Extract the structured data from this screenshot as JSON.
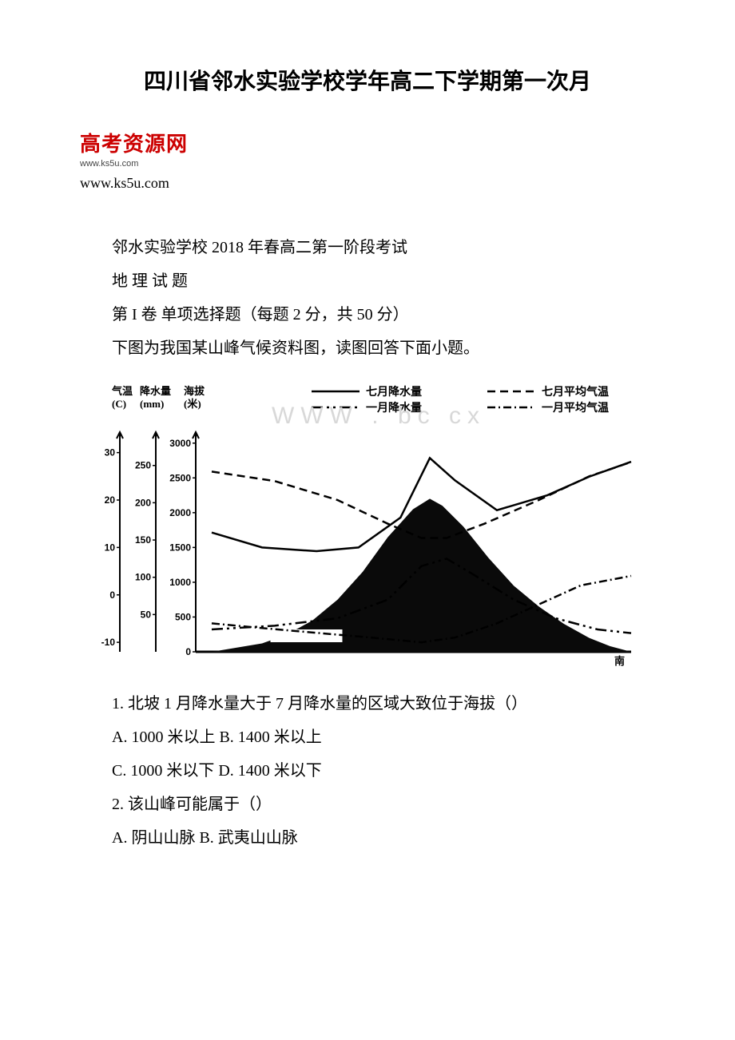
{
  "title": "四川省邻水实验学校学年高二下学期第一次月",
  "logo": {
    "brand": "高考资源网",
    "sub_url": "www.ks5u.com"
  },
  "main_url": "www.ks5u.com",
  "paragraphs": {
    "p1": "邻水实验学校 2018 年春高二第一阶段考试",
    "p2": "地 理 试 题",
    "p3": "第 I 卷 单项选择题（每题 2 分，共 50 分）",
    "p4": "下图为我国某山峰气候资料图，读图回答下面小题。"
  },
  "chart": {
    "type": "line-and-area",
    "background_color": "#ffffff",
    "axis_labels": {
      "temp": "气温",
      "temp_unit": "(C)",
      "precip": "降水量",
      "precip_unit": "(mm)",
      "elev": "海拔",
      "elev_unit": "(米)"
    },
    "legend": {
      "jul_precip": "七月降水量",
      "jan_precip": "一月降水量",
      "jul_temp": "七月平均气温",
      "jan_temp": "一月平均气温"
    },
    "temp_ticks": [
      -10,
      0,
      10,
      20,
      30
    ],
    "precip_ticks": [
      50,
      100,
      150,
      200,
      250
    ],
    "elev_ticks": [
      0,
      500,
      1000,
      1500,
      2000,
      2500,
      3000
    ],
    "mountain_profile": [
      [
        0,
        0
      ],
      [
        0.05,
        50
      ],
      [
        0.12,
        120
      ],
      [
        0.18,
        250
      ],
      [
        0.24,
        450
      ],
      [
        0.3,
        750
      ],
      [
        0.36,
        1150
      ],
      [
        0.42,
        1650
      ],
      [
        0.48,
        2050
      ],
      [
        0.52,
        2200
      ],
      [
        0.55,
        2100
      ],
      [
        0.6,
        1800
      ],
      [
        0.66,
        1350
      ],
      [
        0.72,
        950
      ],
      [
        0.78,
        650
      ],
      [
        0.84,
        400
      ],
      [
        0.9,
        200
      ],
      [
        0.95,
        80
      ],
      [
        1.0,
        0
      ]
    ],
    "jul_precip_line": [
      [
        0,
        160
      ],
      [
        0.12,
        140
      ],
      [
        0.25,
        135
      ],
      [
        0.35,
        140
      ],
      [
        0.45,
        180
      ],
      [
        0.52,
        260
      ],
      [
        0.58,
        230
      ],
      [
        0.68,
        190
      ],
      [
        0.8,
        210
      ],
      [
        0.9,
        235
      ],
      [
        1.0,
        255
      ]
    ],
    "jan_precip_line": [
      [
        0,
        30
      ],
      [
        0.15,
        35
      ],
      [
        0.3,
        45
      ],
      [
        0.42,
        70
      ],
      [
        0.5,
        115
      ],
      [
        0.56,
        125
      ],
      [
        0.62,
        105
      ],
      [
        0.72,
        70
      ],
      [
        0.82,
        45
      ],
      [
        0.92,
        30
      ],
      [
        1.0,
        25
      ]
    ],
    "jul_temp_line": [
      [
        0,
        26
      ],
      [
        0.15,
        24
      ],
      [
        0.3,
        20
      ],
      [
        0.42,
        15
      ],
      [
        0.5,
        12
      ],
      [
        0.56,
        12
      ],
      [
        0.65,
        15
      ],
      [
        0.78,
        20
      ],
      [
        0.9,
        25
      ],
      [
        1.0,
        28
      ]
    ],
    "jan_temp_line": [
      [
        0,
        -6
      ],
      [
        0.12,
        -7
      ],
      [
        0.25,
        -8
      ],
      [
        0.38,
        -9
      ],
      [
        0.5,
        -10
      ],
      [
        0.58,
        -9
      ],
      [
        0.68,
        -6
      ],
      [
        0.78,
        -2
      ],
      [
        0.88,
        2
      ],
      [
        1.0,
        4
      ]
    ],
    "colors": {
      "mountain_fill": "#0a0a0a",
      "line_color": "#000000",
      "axis_color": "#000000"
    },
    "watermark": "WWW . bc cx"
  },
  "questions": {
    "q1": "1. 北坡 1 月降水量大于 7 月降水量的区域大致位于海拔（）",
    "q1_ab": "A. 1000 米以上 B. 1400 米以上",
    "q1_cd": "C. 1000 米以下 D. 1400 米以下",
    "q2": "2. 该山峰可能属于（）",
    "q2_ab": "A. 阴山山脉 B. 武夷山山脉"
  }
}
